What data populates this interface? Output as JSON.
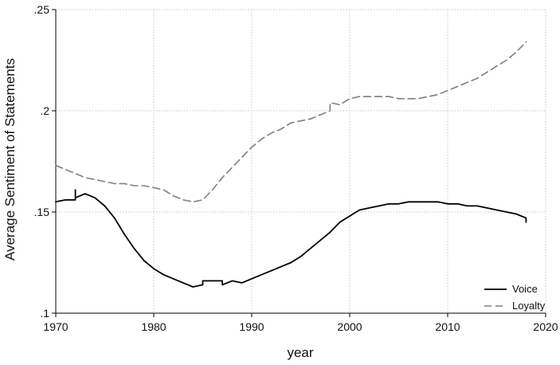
{
  "chart_data": {
    "type": "line",
    "title": "",
    "xlabel": "year",
    "ylabel": "Average Sentiment of Statements",
    "xlim": [
      1970,
      2020
    ],
    "ylim": [
      0.1,
      0.25
    ],
    "x_ticks": [
      1970,
      1980,
      1990,
      2000,
      2010,
      2020
    ],
    "x_tick_labels": [
      "1970",
      "1980",
      "1990",
      "2000",
      "2010",
      "2020"
    ],
    "y_ticks": [
      0.1,
      0.15,
      0.2,
      0.25
    ],
    "y_tick_labels": [
      ".1",
      ".15",
      ".2",
      ".25"
    ],
    "grid": true,
    "legend_position": "bottom-right",
    "series": [
      {
        "name": "Voice",
        "style": "solid",
        "color": "#000000",
        "x": [
          1970,
          1971,
          1972,
          1972,
          1972,
          1973,
          1974,
          1975,
          1976,
          1977,
          1978,
          1979,
          1980,
          1981,
          1982,
          1983,
          1984,
          1985,
          1985,
          1986,
          1987,
          1987,
          1988,
          1989,
          1990,
          1991,
          1992,
          1993,
          1994,
          1995,
          1996,
          1997,
          1998,
          1999,
          2000,
          2001,
          2002,
          2003,
          2004,
          2005,
          2006,
          2007,
          2008,
          2009,
          2010,
          2011,
          2012,
          2013,
          2014,
          2015,
          2016,
          2017,
          2018,
          2018
        ],
        "y": [
          0.155,
          0.156,
          0.156,
          0.161,
          0.157,
          0.159,
          0.157,
          0.153,
          0.147,
          0.139,
          0.132,
          0.126,
          0.122,
          0.119,
          0.117,
          0.115,
          0.113,
          0.114,
          0.116,
          0.116,
          0.116,
          0.114,
          0.116,
          0.115,
          0.117,
          0.119,
          0.121,
          0.123,
          0.125,
          0.128,
          0.132,
          0.136,
          0.14,
          0.145,
          0.148,
          0.151,
          0.152,
          0.153,
          0.154,
          0.154,
          0.155,
          0.155,
          0.155,
          0.155,
          0.154,
          0.154,
          0.153,
          0.153,
          0.152,
          0.151,
          0.15,
          0.149,
          0.147,
          0.145
        ]
      },
      {
        "name": "Loyalty",
        "style": "dashed",
        "color": "#7f7f7f",
        "x": [
          1970,
          1971,
          1972,
          1973,
          1974,
          1975,
          1976,
          1977,
          1978,
          1979,
          1980,
          1981,
          1982,
          1983,
          1984,
          1985,
          1986,
          1987,
          1988,
          1989,
          1990,
          1991,
          1992,
          1993,
          1994,
          1995,
          1996,
          1997,
          1998,
          1998,
          1999,
          2000,
          2001,
          2002,
          2003,
          2004,
          2005,
          2006,
          2007,
          2008,
          2009,
          2010,
          2011,
          2012,
          2013,
          2014,
          2015,
          2016,
          2017,
          2018
        ],
        "y": [
          0.173,
          0.171,
          0.169,
          0.167,
          0.166,
          0.165,
          0.164,
          0.164,
          0.163,
          0.163,
          0.162,
          0.161,
          0.158,
          0.156,
          0.155,
          0.156,
          0.161,
          0.167,
          0.172,
          0.177,
          0.182,
          0.186,
          0.189,
          0.191,
          0.194,
          0.195,
          0.196,
          0.198,
          0.2,
          0.204,
          0.203,
          0.206,
          0.207,
          0.207,
          0.207,
          0.207,
          0.206,
          0.206,
          0.206,
          0.207,
          0.208,
          0.21,
          0.212,
          0.214,
          0.216,
          0.219,
          0.222,
          0.225,
          0.229,
          0.234
        ]
      }
    ]
  },
  "colors": {
    "background": "#ffffff",
    "grid": "#c8c8c8",
    "axis": "#000000"
  }
}
